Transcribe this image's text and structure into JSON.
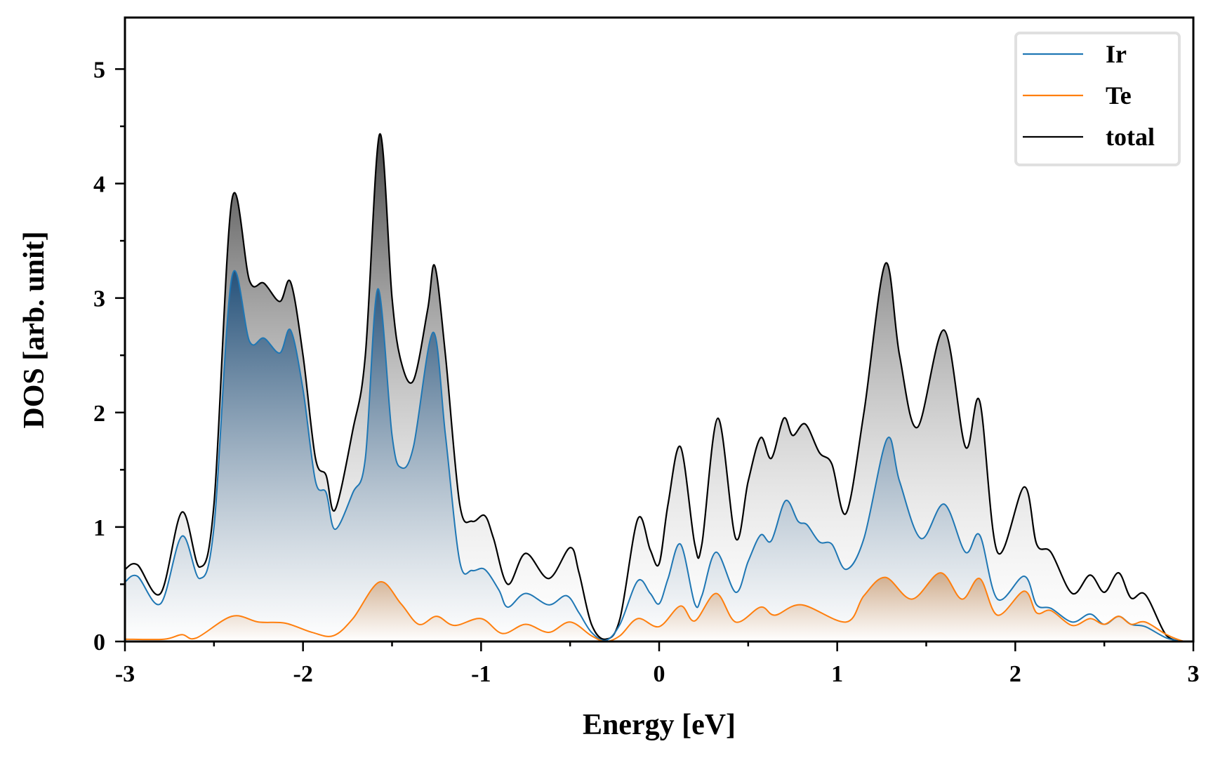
{
  "chart_data": {
    "type": "area",
    "title": "",
    "xlabel": "Energy [eV]",
    "ylabel": "DOS [arb. unit]",
    "xlim": [
      -3,
      3
    ],
    "ylim": [
      0,
      5.45
    ],
    "xticks": [
      "-3",
      "-2",
      "-1",
      "0",
      "1",
      "2",
      "3"
    ],
    "yticks": [
      "0",
      "1",
      "2",
      "3",
      "4",
      "5"
    ],
    "xtick_values": [
      -3,
      -2,
      -1,
      0,
      1,
      2,
      3
    ],
    "ytick_values": [
      0,
      1,
      2,
      3,
      4,
      5
    ],
    "minor_tick_step": 0.5,
    "grid": false,
    "legend_position": "top-right",
    "series": [
      {
        "name": "Ir",
        "color": "#1f77b4",
        "fill": "#1f4e79",
        "points": [
          [
            -3,
            0.52
          ],
          [
            -2.93,
            0.57
          ],
          [
            -2.8,
            0.33
          ],
          [
            -2.68,
            0.92
          ],
          [
            -2.58,
            0.55
          ],
          [
            -2.5,
            1.0
          ],
          [
            -2.4,
            3.18
          ],
          [
            -2.3,
            2.62
          ],
          [
            -2.22,
            2.65
          ],
          [
            -2.13,
            2.52
          ],
          [
            -2.07,
            2.72
          ],
          [
            -2.0,
            2.2
          ],
          [
            -1.93,
            1.4
          ],
          [
            -1.87,
            1.3
          ],
          [
            -1.82,
            0.98
          ],
          [
            -1.72,
            1.3
          ],
          [
            -1.65,
            1.6
          ],
          [
            -1.58,
            3.08
          ],
          [
            -1.5,
            1.8
          ],
          [
            -1.45,
            1.52
          ],
          [
            -1.38,
            1.7
          ],
          [
            -1.27,
            2.7
          ],
          [
            -1.2,
            1.8
          ],
          [
            -1.12,
            0.7
          ],
          [
            -1.05,
            0.62
          ],
          [
            -0.98,
            0.63
          ],
          [
            -0.9,
            0.45
          ],
          [
            -0.85,
            0.3
          ],
          [
            -0.75,
            0.42
          ],
          [
            -0.62,
            0.32
          ],
          [
            -0.52,
            0.4
          ],
          [
            -0.45,
            0.25
          ],
          [
            -0.38,
            0.08
          ],
          [
            -0.3,
            0.01
          ],
          [
            -0.22,
            0.15
          ],
          [
            -0.12,
            0.53
          ],
          [
            -0.05,
            0.42
          ],
          [
            0.0,
            0.33
          ],
          [
            0.05,
            0.55
          ],
          [
            0.12,
            0.85
          ],
          [
            0.2,
            0.33
          ],
          [
            0.24,
            0.4
          ],
          [
            0.32,
            0.78
          ],
          [
            0.43,
            0.43
          ],
          [
            0.5,
            0.7
          ],
          [
            0.57,
            0.93
          ],
          [
            0.63,
            0.88
          ],
          [
            0.71,
            1.23
          ],
          [
            0.78,
            1.05
          ],
          [
            0.83,
            1.02
          ],
          [
            0.9,
            0.87
          ],
          [
            0.97,
            0.85
          ],
          [
            1.05,
            0.63
          ],
          [
            1.15,
            0.9
          ],
          [
            1.28,
            1.77
          ],
          [
            1.35,
            1.4
          ],
          [
            1.47,
            0.9
          ],
          [
            1.6,
            1.2
          ],
          [
            1.72,
            0.78
          ],
          [
            1.8,
            0.93
          ],
          [
            1.9,
            0.37
          ],
          [
            2.05,
            0.57
          ],
          [
            2.12,
            0.32
          ],
          [
            2.2,
            0.29
          ],
          [
            2.32,
            0.17
          ],
          [
            2.42,
            0.24
          ],
          [
            2.5,
            0.15
          ],
          [
            2.58,
            0.22
          ],
          [
            2.65,
            0.15
          ],
          [
            2.73,
            0.13
          ],
          [
            2.85,
            0.03
          ],
          [
            2.95,
            0.0
          ],
          [
            3.0,
            0.0
          ]
        ]
      },
      {
        "name": "Te",
        "color": "#ff7f0e",
        "fill": "#b5651d",
        "points": [
          [
            -3,
            0.02
          ],
          [
            -2.78,
            0.02
          ],
          [
            -2.68,
            0.06
          ],
          [
            -2.6,
            0.03
          ],
          [
            -2.4,
            0.22
          ],
          [
            -2.25,
            0.17
          ],
          [
            -2.1,
            0.16
          ],
          [
            -1.95,
            0.08
          ],
          [
            -1.83,
            0.05
          ],
          [
            -1.72,
            0.2
          ],
          [
            -1.57,
            0.52
          ],
          [
            -1.45,
            0.33
          ],
          [
            -1.35,
            0.15
          ],
          [
            -1.25,
            0.22
          ],
          [
            -1.15,
            0.14
          ],
          [
            -1.0,
            0.2
          ],
          [
            -0.88,
            0.07
          ],
          [
            -0.75,
            0.15
          ],
          [
            -0.62,
            0.08
          ],
          [
            -0.5,
            0.17
          ],
          [
            -0.38,
            0.05
          ],
          [
            -0.3,
            0.0
          ],
          [
            -0.22,
            0.05
          ],
          [
            -0.12,
            0.2
          ],
          [
            0.0,
            0.13
          ],
          [
            0.12,
            0.31
          ],
          [
            0.2,
            0.18
          ],
          [
            0.32,
            0.42
          ],
          [
            0.43,
            0.17
          ],
          [
            0.57,
            0.3
          ],
          [
            0.65,
            0.23
          ],
          [
            0.8,
            0.32
          ],
          [
            1.05,
            0.17
          ],
          [
            1.15,
            0.4
          ],
          [
            1.27,
            0.56
          ],
          [
            1.42,
            0.37
          ],
          [
            1.58,
            0.6
          ],
          [
            1.7,
            0.37
          ],
          [
            1.8,
            0.55
          ],
          [
            1.9,
            0.23
          ],
          [
            2.05,
            0.44
          ],
          [
            2.12,
            0.25
          ],
          [
            2.2,
            0.27
          ],
          [
            2.32,
            0.14
          ],
          [
            2.42,
            0.2
          ],
          [
            2.5,
            0.15
          ],
          [
            2.58,
            0.22
          ],
          [
            2.65,
            0.15
          ],
          [
            2.73,
            0.17
          ],
          [
            2.85,
            0.06
          ],
          [
            2.95,
            0.0
          ],
          [
            3.0,
            0.0
          ]
        ]
      },
      {
        "name": "total",
        "color": "#000000",
        "fill": "#444444",
        "points": [
          [
            -3,
            0.63
          ],
          [
            -2.93,
            0.67
          ],
          [
            -2.8,
            0.42
          ],
          [
            -2.68,
            1.13
          ],
          [
            -2.58,
            0.65
          ],
          [
            -2.5,
            1.2
          ],
          [
            -2.4,
            3.85
          ],
          [
            -2.3,
            3.15
          ],
          [
            -2.22,
            3.13
          ],
          [
            -2.13,
            2.97
          ],
          [
            -2.07,
            3.14
          ],
          [
            -2.0,
            2.5
          ],
          [
            -1.93,
            1.6
          ],
          [
            -1.87,
            1.45
          ],
          [
            -1.82,
            1.15
          ],
          [
            -1.72,
            1.85
          ],
          [
            -1.65,
            2.5
          ],
          [
            -1.57,
            4.43
          ],
          [
            -1.5,
            3.0
          ],
          [
            -1.45,
            2.45
          ],
          [
            -1.38,
            2.28
          ],
          [
            -1.3,
            2.9
          ],
          [
            -1.26,
            3.28
          ],
          [
            -1.2,
            2.5
          ],
          [
            -1.12,
            1.2
          ],
          [
            -1.05,
            1.05
          ],
          [
            -0.98,
            1.1
          ],
          [
            -0.93,
            0.9
          ],
          [
            -0.85,
            0.5
          ],
          [
            -0.75,
            0.77
          ],
          [
            -0.62,
            0.55
          ],
          [
            -0.5,
            0.82
          ],
          [
            -0.45,
            0.6
          ],
          [
            -0.38,
            0.15
          ],
          [
            -0.3,
            0.02
          ],
          [
            -0.22,
            0.2
          ],
          [
            -0.12,
            1.07
          ],
          [
            -0.05,
            0.8
          ],
          [
            0.0,
            0.68
          ],
          [
            0.05,
            1.2
          ],
          [
            0.12,
            1.7
          ],
          [
            0.2,
            0.85
          ],
          [
            0.24,
            0.85
          ],
          [
            0.33,
            1.95
          ],
          [
            0.43,
            0.9
          ],
          [
            0.5,
            1.4
          ],
          [
            0.57,
            1.78
          ],
          [
            0.63,
            1.6
          ],
          [
            0.7,
            1.95
          ],
          [
            0.75,
            1.8
          ],
          [
            0.82,
            1.9
          ],
          [
            0.9,
            1.65
          ],
          [
            0.97,
            1.55
          ],
          [
            1.05,
            1.12
          ],
          [
            1.15,
            2.0
          ],
          [
            1.27,
            3.3
          ],
          [
            1.35,
            2.5
          ],
          [
            1.45,
            1.87
          ],
          [
            1.6,
            2.72
          ],
          [
            1.72,
            1.7
          ],
          [
            1.8,
            2.1
          ],
          [
            1.9,
            0.78
          ],
          [
            2.05,
            1.35
          ],
          [
            2.12,
            0.85
          ],
          [
            2.2,
            0.78
          ],
          [
            2.32,
            0.42
          ],
          [
            2.42,
            0.58
          ],
          [
            2.5,
            0.43
          ],
          [
            2.58,
            0.6
          ],
          [
            2.65,
            0.38
          ],
          [
            2.73,
            0.41
          ],
          [
            2.85,
            0.05
          ],
          [
            2.95,
            0.0
          ],
          [
            3.0,
            0.0
          ]
        ]
      }
    ]
  }
}
